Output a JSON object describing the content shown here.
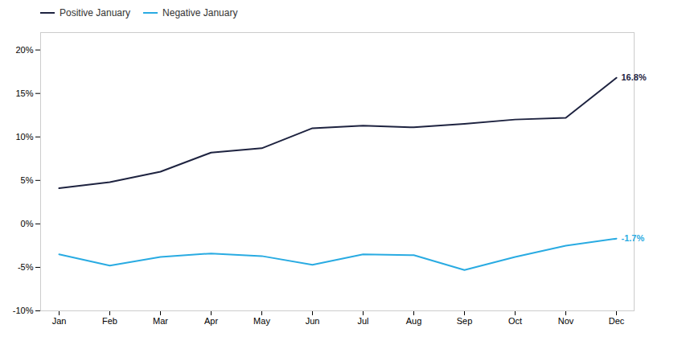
{
  "chart_data": {
    "type": "line",
    "categories": [
      "Jan",
      "Feb",
      "Mar",
      "Apr",
      "May",
      "Jun",
      "Jul",
      "Aug",
      "Sep",
      "Oct",
      "Nov",
      "Dec"
    ],
    "series": [
      {
        "name": "Positive January",
        "color": "#1e2340",
        "values": [
          4.1,
          4.8,
          6.0,
          8.2,
          8.7,
          11.0,
          11.3,
          11.1,
          11.5,
          12.0,
          12.2,
          16.8
        ]
      },
      {
        "name": "Negative January",
        "color": "#29abe2",
        "values": [
          -3.5,
          -4.8,
          -3.8,
          -3.4,
          -3.7,
          -4.7,
          -3.5,
          -3.6,
          -5.3,
          -3.8,
          -2.5,
          -1.7
        ]
      }
    ],
    "annotations": [
      {
        "text": "16.8%",
        "x": "Dec",
        "y": 16.8,
        "color": "#1e2340"
      },
      {
        "text": "-1.7%",
        "x": "Dec",
        "y": -1.7,
        "color": "#29abe2"
      }
    ],
    "ylim": [
      -10,
      22
    ],
    "yticks": [
      {
        "value": -10,
        "label": "-10%"
      },
      {
        "value": -5,
        "label": "-5%"
      },
      {
        "value": 0,
        "label": "0%"
      },
      {
        "value": 5,
        "label": "5%"
      },
      {
        "value": 10,
        "label": "10%"
      },
      {
        "value": 15,
        "label": "15%"
      },
      {
        "value": 20,
        "label": "20%"
      }
    ],
    "grid": false,
    "legend": "top-left"
  }
}
